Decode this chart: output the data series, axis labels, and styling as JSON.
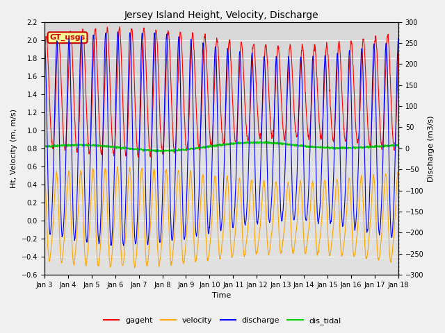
{
  "title": "Jersey Island Height, Velocity, Discharge",
  "xlabel": "Time",
  "ylabel_left": "Ht, Velocity (m, m/s)",
  "ylabel_right": "Discharge (m3/s)",
  "ylim_left": [
    -0.6,
    2.2
  ],
  "ylim_right": [
    -300,
    300
  ],
  "yticks_left": [
    -0.6,
    -0.4,
    -0.2,
    0.0,
    0.2,
    0.4,
    0.6,
    0.8,
    1.0,
    1.2,
    1.4,
    1.6,
    1.8,
    2.0,
    2.2
  ],
  "yticks_right": [
    -300,
    -250,
    -200,
    -150,
    -100,
    -50,
    0,
    50,
    100,
    150,
    200,
    250,
    300
  ],
  "colors": {
    "gageht": "#ff0000",
    "velocity": "#ffa500",
    "discharge": "#0000ff",
    "dis_tidal": "#00cc00"
  },
  "linewidths": {
    "gageht": 0.8,
    "velocity": 0.8,
    "discharge": 0.8,
    "dis_tidal": 1.2
  },
  "fig_bg_color": "#f0f0f0",
  "plot_bg_top": "#e8e8e8",
  "plot_bg_bottom": "#d8d8d8",
  "legend_label": "GT_usgs",
  "legend_text_color": "#cc0000",
  "legend_box_facecolor": "#ffff99",
  "legend_box_edgecolor": "#cc0000"
}
